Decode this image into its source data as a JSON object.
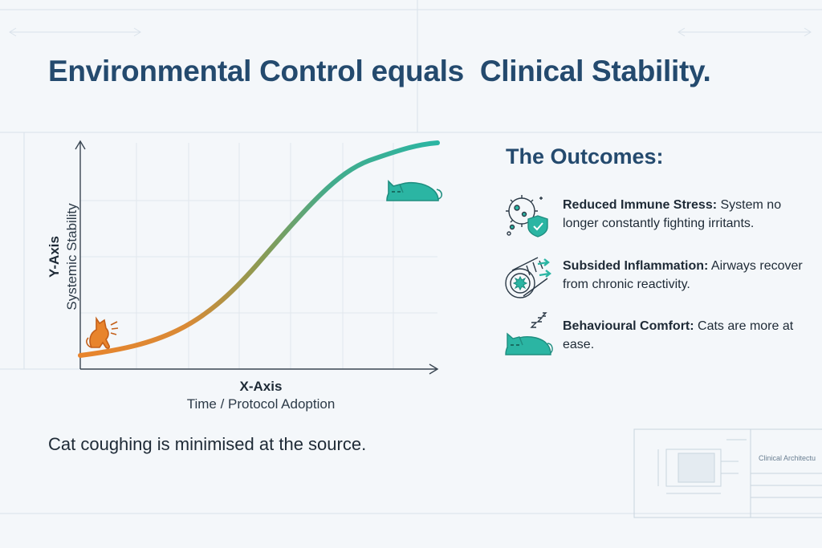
{
  "header": {
    "title": "Environmental Control equals  Clinical Stability."
  },
  "chart": {
    "xlabel": "X-Axis",
    "xsub": "Time / Protocol Adoption",
    "ylabel": "Y-Axis",
    "ysub": "Systemic Stability",
    "start_icon": "coughing-cat-icon",
    "end_icon": "sleeping-cat-icon",
    "gradient_start": "#e8842c",
    "gradient_end": "#2bb5a3"
  },
  "caption": "Cat coughing is minimised at the source.",
  "outcomes": {
    "title": "The Outcomes:",
    "items": [
      {
        "icon": "immune-shield-icon",
        "bold": "Reduced Immune Stress:",
        "text": " System no longer constantly fighting irritants."
      },
      {
        "icon": "airway-icon",
        "bold": "Subsided Inflammation:",
        "text": " Airways recover from chronic reactivity."
      },
      {
        "icon": "sleeping-cat-icon",
        "bold": "Behavioural Comfort:",
        "text": " Cats are more at ease."
      }
    ]
  },
  "title_block": {
    "label": "Clinical Architectu"
  },
  "colors": {
    "title": "#244a6e",
    "teal": "#2bb5a3",
    "orange": "#e8842c"
  }
}
